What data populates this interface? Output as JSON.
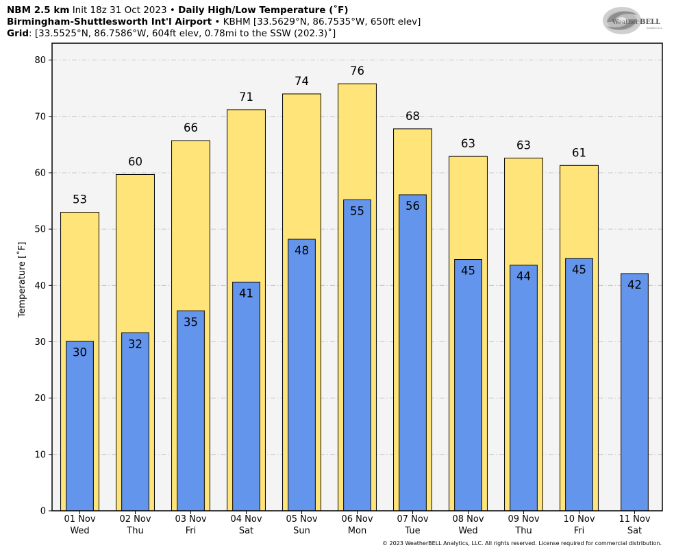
{
  "header": {
    "line1_bold_a": "NBM 2.5 km",
    "line1_plain": "Init 18z 31 Oct 2023",
    "line1_sep": "•",
    "line1_bold_b": "Daily High/Low Temperature (˚F)",
    "line2_bold": "Birmingham-Shuttlesworth Int'l Airport",
    "line2_sep": "•",
    "line2_plain": "KBHM [33.5629°N, 86.7535°W, 650ft elev]",
    "line3_bold": "Grid",
    "line3_plain": ": [33.5525°N, 86.7586°W, 604ft elev, 0.78mi to the SSW (202.3)˚]"
  },
  "logo": {
    "text_a": "Weather",
    "text_b": "BELL",
    "sub": "Analytics LLC",
    "icon": "hurricane-swirl-icon"
  },
  "copyright": "© 2023 WeatherBELL Analytics, LLC. All rights reserved. License required for commercial distribution.",
  "chart_data": {
    "type": "bar",
    "title": "Daily High/Low Temperature (˚F)",
    "ylabel": "Temperature [˚F]",
    "xlabel": "",
    "ylim": [
      0,
      83
    ],
    "yticks": [
      0,
      10,
      20,
      30,
      40,
      50,
      60,
      70,
      80
    ],
    "grid": true,
    "categories": [
      {
        "date": "01 Nov",
        "day": "Wed"
      },
      {
        "date": "02 Nov",
        "day": "Thu"
      },
      {
        "date": "03 Nov",
        "day": "Fri"
      },
      {
        "date": "04 Nov",
        "day": "Sat"
      },
      {
        "date": "05 Nov",
        "day": "Sun"
      },
      {
        "date": "06 Nov",
        "day": "Mon"
      },
      {
        "date": "07 Nov",
        "day": "Tue"
      },
      {
        "date": "08 Nov",
        "day": "Wed"
      },
      {
        "date": "09 Nov",
        "day": "Thu"
      },
      {
        "date": "10 Nov",
        "day": "Fri"
      },
      {
        "date": "11 Nov",
        "day": "Sat"
      }
    ],
    "series": [
      {
        "key": "high",
        "color": "#ffe47a",
        "values": [
          53.0,
          59.7,
          65.7,
          71.2,
          74.0,
          75.8,
          67.8,
          62.9,
          62.6,
          61.3,
          null
        ],
        "labels": [
          "53",
          "60",
          "66",
          "71",
          "74",
          "76",
          "68",
          "63",
          "63",
          "61",
          null
        ]
      },
      {
        "key": "low",
        "color": "#6495ed",
        "values": [
          30.1,
          31.6,
          35.5,
          40.6,
          48.2,
          55.2,
          56.1,
          44.6,
          43.6,
          44.8,
          42.1
        ],
        "labels": [
          "30",
          "32",
          "35",
          "41",
          "48",
          "55",
          "56",
          "45",
          "44",
          "45",
          "42"
        ]
      }
    ],
    "colors": {
      "plot_background": "#f4f4f4",
      "grid": "#b8b8b8",
      "bar_edge": "#000000"
    }
  }
}
